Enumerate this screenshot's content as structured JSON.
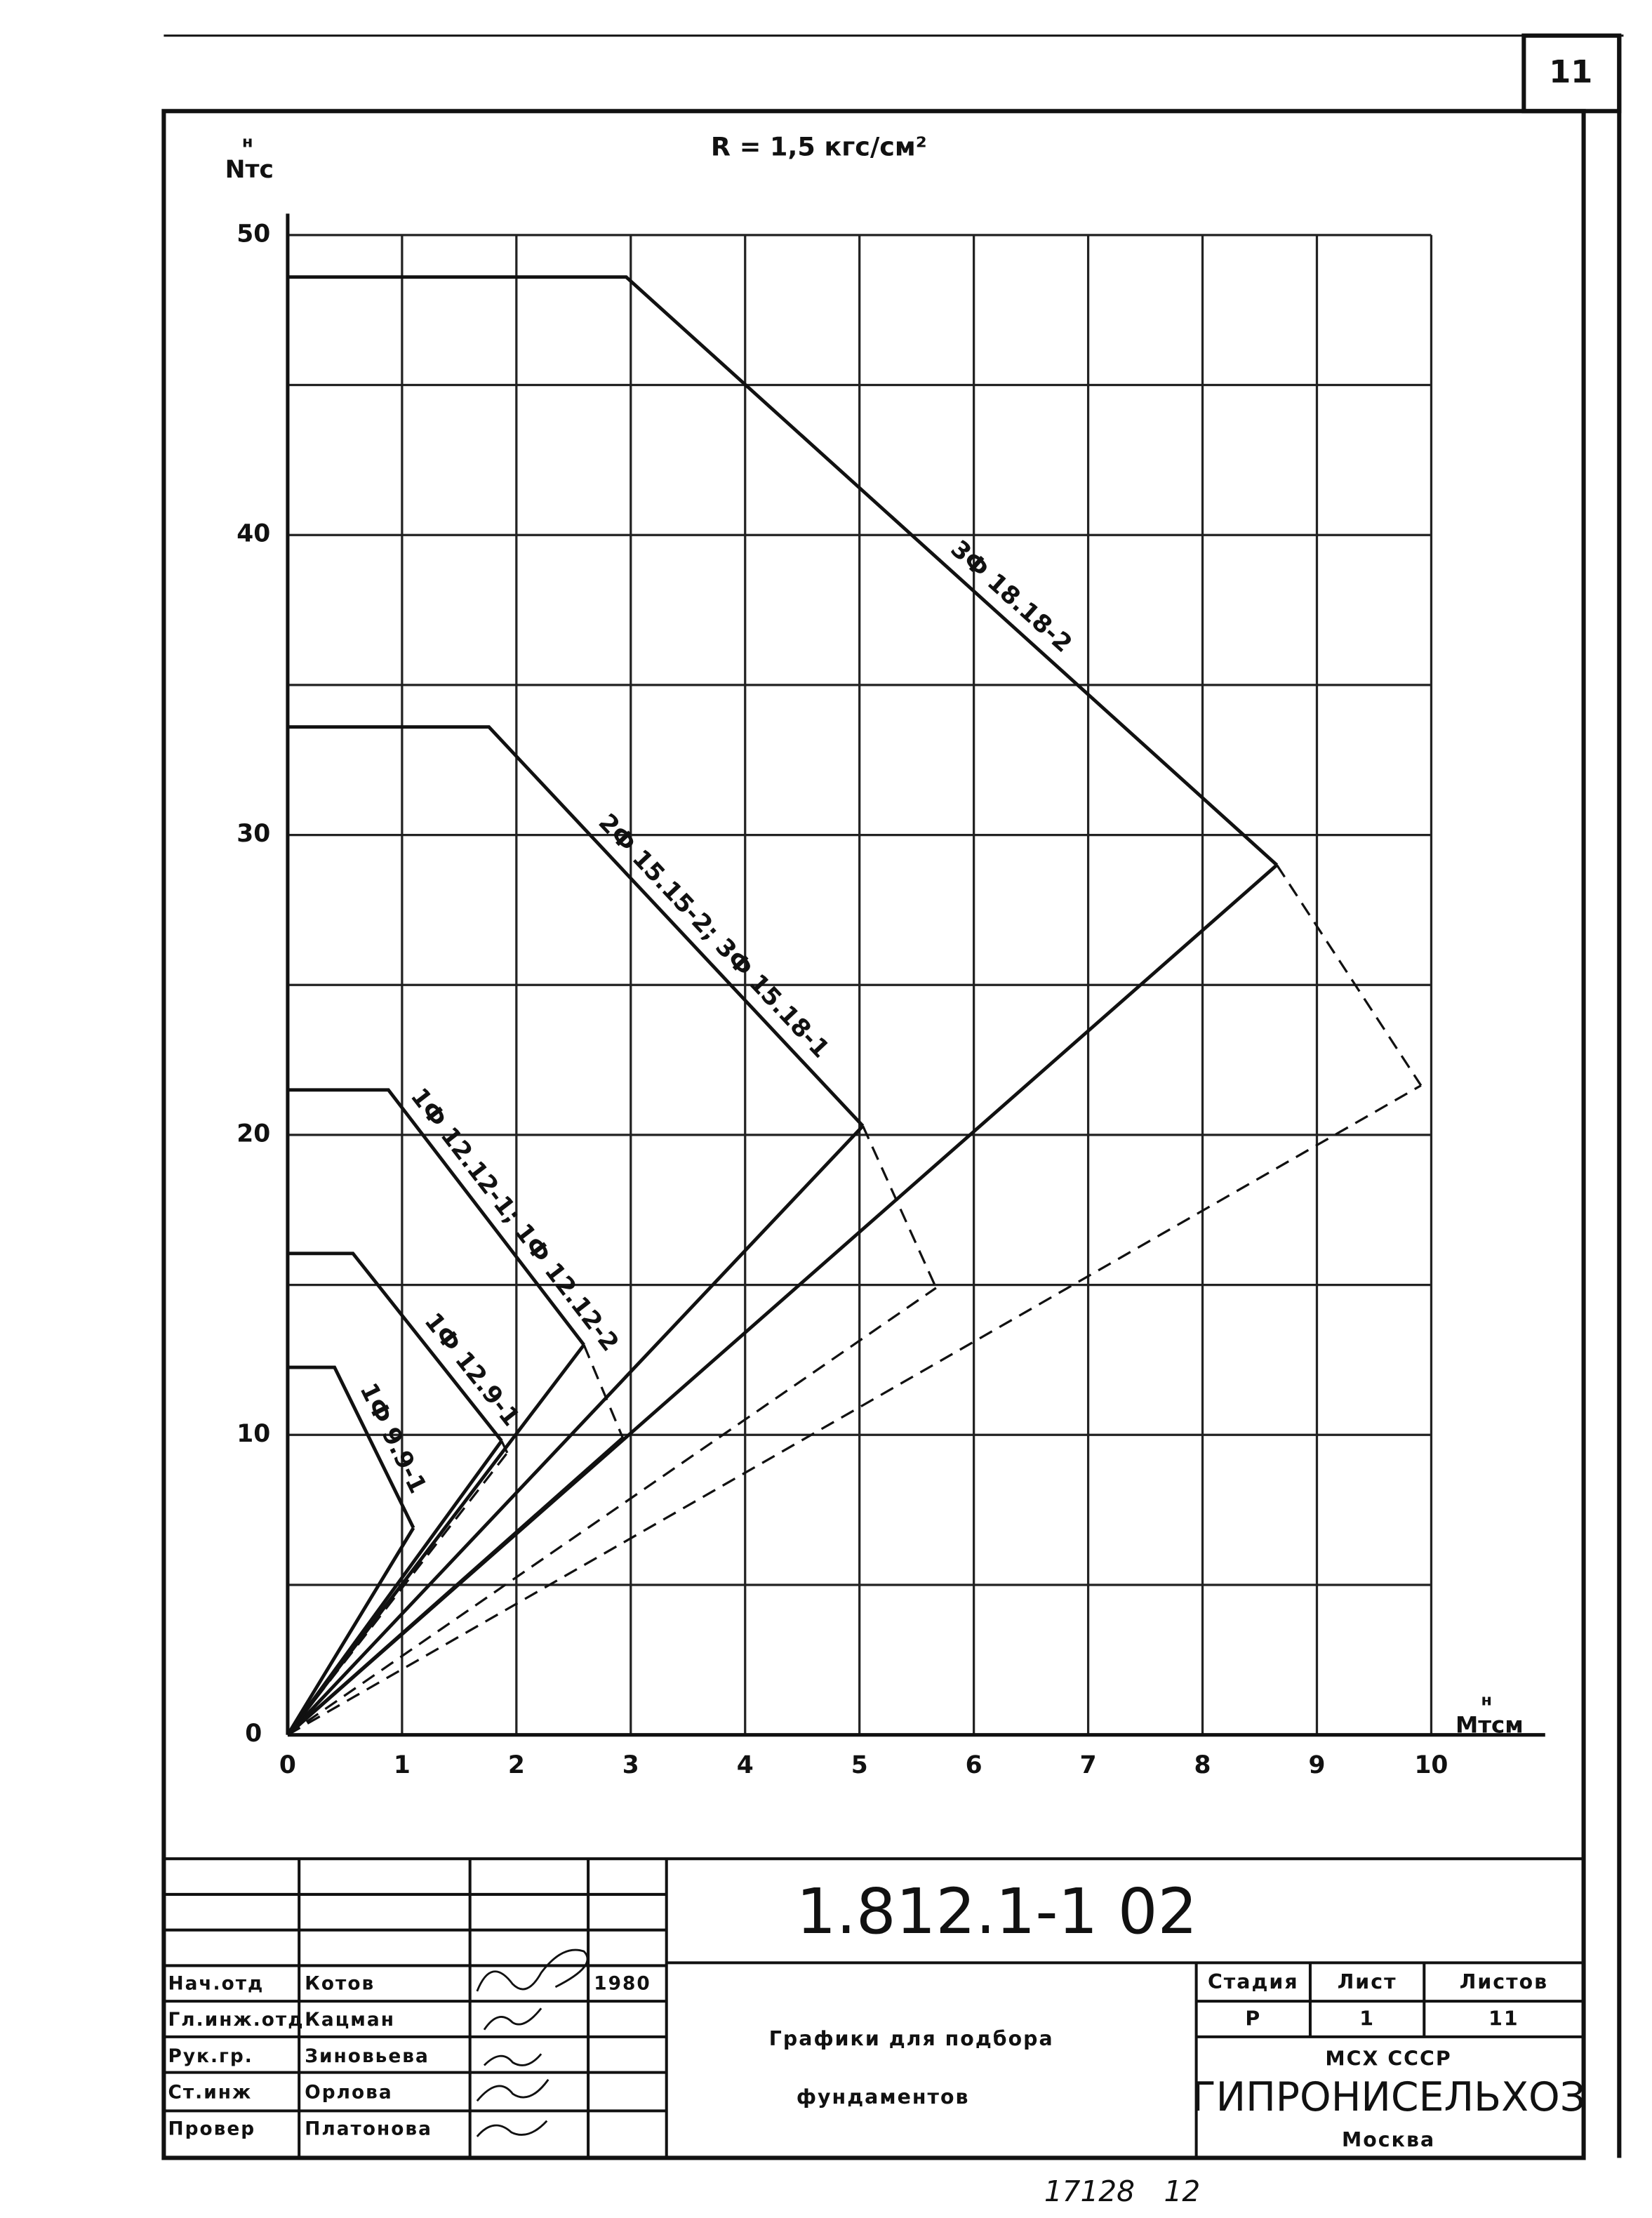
{
  "chart_data": {
    "type": "line",
    "title": "R = 1,5 кгс/см²",
    "ylabel": "Nтс",
    "ylabel_sup": "н",
    "xlabel": "Мтсм",
    "xlabel_sup": "н",
    "xlim": [
      0,
      10
    ],
    "ylim": [
      0,
      50
    ],
    "xticks": [
      0,
      1,
      2,
      3,
      4,
      5,
      6,
      7,
      8,
      9,
      10
    ],
    "yticks": [
      0,
      10,
      20,
      30,
      40,
      50
    ],
    "yminor": [
      5,
      15,
      25,
      35,
      45
    ],
    "grid": true,
    "color": "#111",
    "series": [
      {
        "name": "3Ф 18.18-2",
        "segments": [
          {
            "style": "solid",
            "x": [
              0,
              2.96,
              8.65
            ],
            "values": [
              48.6,
              48.6,
              29.0
            ]
          },
          {
            "style": "dashed",
            "x": [
              8.65,
              9.91
            ],
            "values": [
              29.0,
              21.65
            ]
          },
          {
            "style": "solid",
            "x": [
              0,
              8.65
            ],
            "values": [
              0,
              29.0
            ]
          },
          {
            "style": "dashed",
            "x": [
              0,
              9.91
            ],
            "values": [
              0,
              21.65
            ]
          }
        ]
      },
      {
        "name": "2Ф 15.15-2; 3Ф 15.18-1",
        "segments": [
          {
            "style": "solid",
            "x": [
              0,
              1.76,
              5.03
            ],
            "values": [
              33.6,
              33.6,
              20.3
            ]
          },
          {
            "style": "dashed",
            "x": [
              5.03,
              5.67
            ],
            "values": [
              20.3,
              14.9
            ]
          },
          {
            "style": "solid",
            "x": [
              0,
              5.03
            ],
            "values": [
              0,
              20.3
            ]
          },
          {
            "style": "dashed",
            "x": [
              0,
              5.67
            ],
            "values": [
              0,
              14.9
            ]
          }
        ]
      },
      {
        "name": "1Ф 12.12-1; 1Ф 12.12-2",
        "segments": [
          {
            "style": "solid",
            "x": [
              0,
              0.88,
              2.59
            ],
            "values": [
              21.5,
              21.5,
              13.0
            ]
          },
          {
            "style": "dashed",
            "x": [
              2.59,
              2.93
            ],
            "values": [
              13.0,
              9.9
            ]
          },
          {
            "style": "solid",
            "x": [
              0,
              2.59
            ],
            "values": [
              0,
              13.0
            ]
          },
          {
            "style": "solid",
            "x": [
              0,
              2.93
            ],
            "values": [
              0,
              9.9
            ]
          }
        ]
      },
      {
        "name": "1Ф 12.9-1",
        "segments": [
          {
            "style": "solid",
            "x": [
              0,
              0.57,
              1.87
            ],
            "values": [
              16.05,
              16.05,
              9.8
            ]
          },
          {
            "style": "dashed",
            "x": [
              1.87,
              1.92
            ],
            "values": [
              9.8,
              9.4
            ]
          },
          {
            "style": "solid",
            "x": [
              0,
              1.87
            ],
            "values": [
              0,
              9.8
            ]
          },
          {
            "style": "dashed",
            "x": [
              0,
              1.92
            ],
            "values": [
              0,
              9.4
            ]
          }
        ]
      },
      {
        "name": "1Ф 9.9-1",
        "segments": [
          {
            "style": "solid",
            "x": [
              0,
              0.41,
              1.1
            ],
            "values": [
              12.25,
              12.25,
              6.9
            ]
          },
          {
            "style": "solid",
            "x": [
              0,
              1.1
            ],
            "values": [
              0,
              6.9
            ]
          }
        ]
      }
    ]
  },
  "title_block": {
    "code": "1.812.1-1 02",
    "title_lines": [
      "Графики для подбора",
      "фундаментов"
    ],
    "staff": [
      [
        "Нач.отд",
        "Котов",
        "1980"
      ],
      [
        "Гл.инж.отд",
        "Кацман"
      ],
      [
        "Рук.гр.",
        "Зиновьева"
      ],
      [
        "Ст.инж",
        "Орлова"
      ],
      [
        "Провер",
        "Платонова"
      ]
    ],
    "stage_headers": [
      "Стадия",
      "Лист",
      "Листов"
    ],
    "stage_values": [
      "Р",
      "1",
      "11"
    ],
    "org": [
      "МСХ СССР",
      "ГИПРОНИСЕЛЬХОЗ",
      "Москва"
    ]
  },
  "sheet_number": "11",
  "footer": [
    "17128",
    "12"
  ]
}
